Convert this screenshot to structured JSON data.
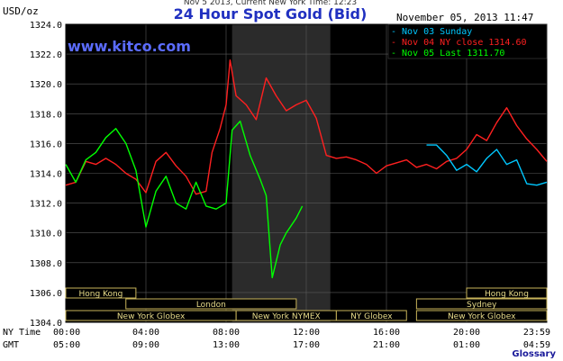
{
  "chart_data": {
    "type": "line",
    "title": "24 Hour Spot Gold (Bid)",
    "top_caption": "Nov 5 2013, Current New York Time: 12:23",
    "ylabel": "USD/oz",
    "datetime": "November 05, 2013 11:47",
    "watermark": "www.kitco.com",
    "ylim": [
      1304,
      1324
    ],
    "y_ticks": [
      "1324.0",
      "1322.0",
      "1320.0",
      "1318.0",
      "1316.0",
      "1314.0",
      "1312.0",
      "1310.0",
      "1308.0",
      "1306.0",
      "1304.0"
    ],
    "ny_time_label": "NY Time",
    "gmt_label": "GMT",
    "ny_time_ticks": [
      "00:00",
      "04:00",
      "08:00",
      "12:00",
      "16:00",
      "20:00",
      "23:59"
    ],
    "gmt_ticks": [
      "05:00",
      "09:00",
      "13:00",
      "17:00",
      "21:00",
      "01:00",
      "04:59"
    ],
    "x_unit": "NY time (hours)",
    "legend": [
      {
        "name": "Nov 03 Sunday",
        "color": "#00c8ff"
      },
      {
        "name": "Nov 04 NY close 1314.60",
        "color": "#ff2020"
      },
      {
        "name": "Nov 05 Last 1311.70",
        "color": "#00ff00"
      }
    ],
    "series": [
      {
        "name": "Nov 04 NY close 1314.60",
        "color": "#ff2020",
        "points": [
          [
            0,
            1313.2
          ],
          [
            0.5,
            1313.4
          ],
          [
            1,
            1314.8
          ],
          [
            1.5,
            1314.6
          ],
          [
            2,
            1315.0
          ],
          [
            2.5,
            1314.6
          ],
          [
            3,
            1314.0
          ],
          [
            3.5,
            1313.6
          ],
          [
            4,
            1312.7
          ],
          [
            4.5,
            1314.8
          ],
          [
            5,
            1315.4
          ],
          [
            5.5,
            1314.5
          ],
          [
            6,
            1313.8
          ],
          [
            6.5,
            1312.6
          ],
          [
            7,
            1312.8
          ],
          [
            7.3,
            1315.4
          ],
          [
            7.7,
            1317.0
          ],
          [
            8,
            1318.6
          ],
          [
            8.2,
            1321.6
          ],
          [
            8.5,
            1319.2
          ],
          [
            9,
            1318.6
          ],
          [
            9.5,
            1317.6
          ],
          [
            10,
            1320.4
          ],
          [
            10.5,
            1319.2
          ],
          [
            11,
            1318.2
          ],
          [
            11.5,
            1318.6
          ],
          [
            12,
            1318.9
          ],
          [
            12.5,
            1317.7
          ],
          [
            13,
            1315.2
          ],
          [
            13.5,
            1315.0
          ],
          [
            14,
            1315.1
          ],
          [
            14.5,
            1314.9
          ],
          [
            15,
            1314.6
          ],
          [
            15.5,
            1314.0
          ],
          [
            16,
            1314.5
          ],
          [
            16.5,
            1314.7
          ],
          [
            17,
            1314.9
          ],
          [
            17.5,
            1314.4
          ],
          [
            18,
            1314.6
          ],
          [
            18.5,
            1314.3
          ],
          [
            19,
            1314.8
          ],
          [
            19.5,
            1315.0
          ],
          [
            20,
            1315.6
          ],
          [
            20.5,
            1316.6
          ],
          [
            21,
            1316.2
          ],
          [
            21.5,
            1317.4
          ],
          [
            22,
            1318.4
          ],
          [
            22.5,
            1317.2
          ],
          [
            23,
            1316.3
          ],
          [
            23.5,
            1315.6
          ],
          [
            24,
            1314.8
          ]
        ]
      },
      {
        "name": "Nov 03 Sunday",
        "color": "#00c8ff",
        "points": [
          [
            18,
            1315.9
          ],
          [
            18.5,
            1315.9
          ],
          [
            19,
            1315.2
          ],
          [
            19.5,
            1314.2
          ],
          [
            20,
            1314.6
          ],
          [
            20.5,
            1314.1
          ],
          [
            21,
            1315.0
          ],
          [
            21.5,
            1315.6
          ],
          [
            22,
            1314.6
          ],
          [
            22.5,
            1314.9
          ],
          [
            23,
            1313.3
          ],
          [
            23.5,
            1313.2
          ],
          [
            24,
            1313.4
          ]
        ]
      },
      {
        "name": "Nov 05 Last 1311.70",
        "color": "#00ff00",
        "points": [
          [
            0,
            1314.6
          ],
          [
            0.5,
            1313.4
          ],
          [
            1,
            1314.9
          ],
          [
            1.5,
            1315.4
          ],
          [
            2,
            1316.4
          ],
          [
            2.5,
            1317.0
          ],
          [
            3,
            1316.0
          ],
          [
            3.5,
            1314.2
          ],
          [
            4,
            1310.4
          ],
          [
            4.5,
            1312.8
          ],
          [
            5,
            1313.8
          ],
          [
            5.5,
            1312.0
          ],
          [
            6,
            1311.6
          ],
          [
            6.5,
            1313.4
          ],
          [
            7,
            1311.8
          ],
          [
            7.5,
            1311.6
          ],
          [
            8,
            1312.0
          ],
          [
            8.3,
            1316.9
          ],
          [
            8.7,
            1317.5
          ],
          [
            9.2,
            1315.2
          ],
          [
            9.7,
            1313.6
          ],
          [
            10,
            1312.5
          ],
          [
            10.3,
            1307.0
          ],
          [
            10.7,
            1309.2
          ],
          [
            11,
            1310.0
          ],
          [
            11.5,
            1311.0
          ],
          [
            11.8,
            1311.8
          ]
        ]
      }
    ],
    "session_rows": [
      [
        {
          "label": "Hong Kong",
          "start": 0,
          "end": 3.5
        },
        {
          "label": "Hong Kong",
          "start": 20,
          "end": 24
        }
      ],
      [
        {
          "label": "London",
          "start": 3,
          "end": 11.5
        },
        {
          "label": "Sydney",
          "start": 17.5,
          "end": 24
        }
      ],
      [
        {
          "label": "New York Globex",
          "start": 0,
          "end": 8.5
        },
        {
          "label": "New York NYMEX",
          "start": 8.5,
          "end": 13.5
        },
        {
          "label": "NY Globex",
          "start": 13.5,
          "end": 17
        },
        {
          "label": "New York Globex",
          "start": 17.5,
          "end": 24
        }
      ]
    ],
    "glossary_link": "Glossary"
  }
}
